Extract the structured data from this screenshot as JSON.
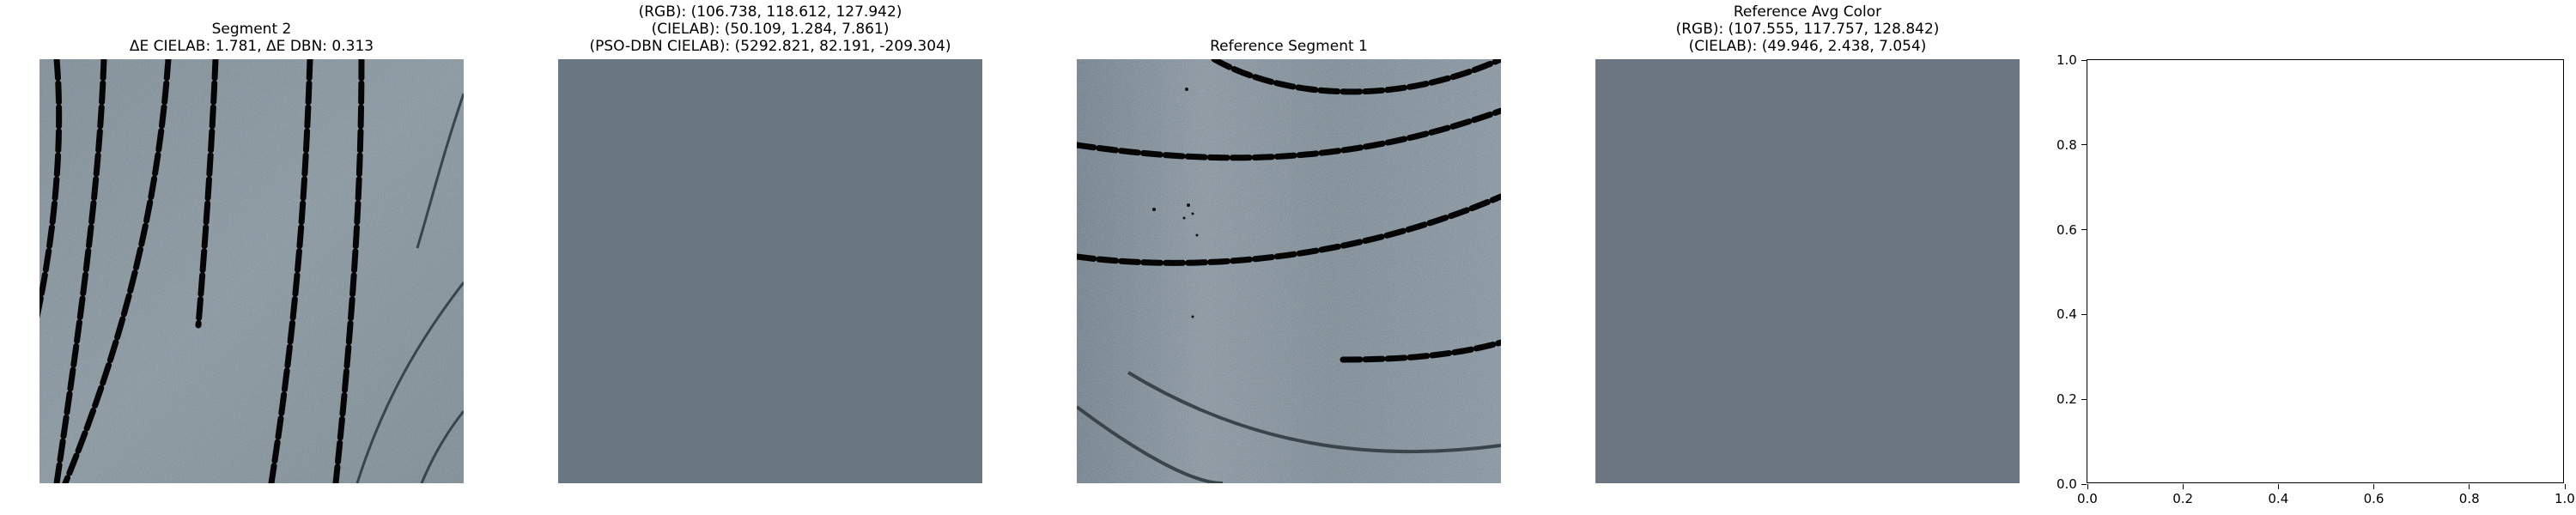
{
  "panels": [
    {
      "id": "segment-2",
      "title_lines": [
        "Segment 2",
        "ΔE CIELAB: 1.781, ΔE DBN: 0.313"
      ]
    },
    {
      "id": "segment-avg-color",
      "title_lines": [
        "(RGB): (106.738, 118.612, 127.942)",
        "(CIELAB): (50.109, 1.284, 7.861)",
        "(PSO-DBN CIELAB): (5292.821, 82.191, -209.304)"
      ],
      "color": "#6b7780"
    },
    {
      "id": "reference-segment-1",
      "title_lines": [
        "Reference Segment 1"
      ]
    },
    {
      "id": "reference-avg-color",
      "title_lines": [
        "Reference Avg Color",
        "(RGB): (107.555, 117.757, 128.842)",
        "(CIELAB): (49.946, 2.438, 7.054)"
      ],
      "color": "#6c7681"
    }
  ],
  "chart_data": {
    "type": "scatter",
    "title": "",
    "xlabel": "",
    "ylabel": "",
    "xlim": [
      0.0,
      1.0
    ],
    "ylim": [
      0.0,
      1.0
    ],
    "x_ticks": [
      "0.0",
      "0.2",
      "0.4",
      "0.6",
      "0.8",
      "1.0"
    ],
    "y_ticks": [
      "0.0",
      "0.2",
      "0.4",
      "0.6",
      "0.8",
      "1.0"
    ],
    "series": []
  }
}
